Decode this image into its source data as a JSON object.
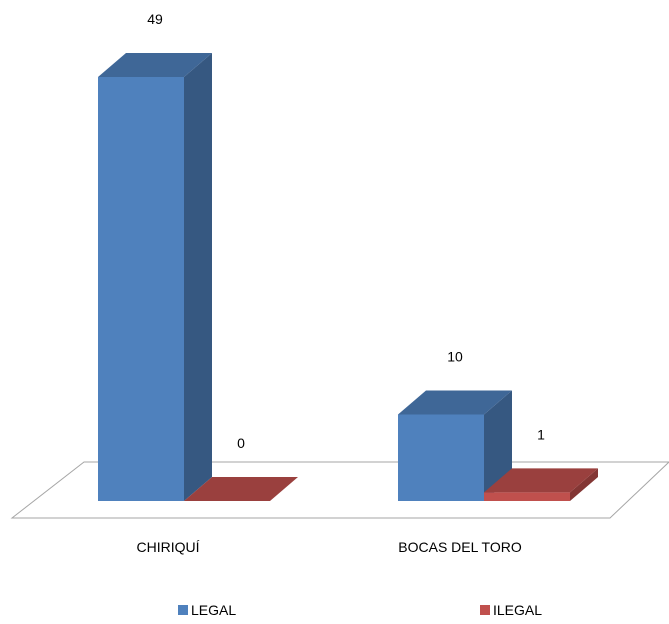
{
  "chart_data": {
    "type": "bar",
    "title": "",
    "xlabel": "",
    "ylabel": "",
    "categories": [
      "CHIRIQUÍ",
      "BOCAS DEL TORO"
    ],
    "series": [
      {
        "name": "LEGAL",
        "values": [
          49,
          10
        ],
        "color": "#4F81BD"
      },
      {
        "name": "ILEGAL",
        "values": [
          0,
          1
        ],
        "color": "#C0504D"
      }
    ],
    "ylim": [
      0,
      49
    ],
    "grid": false,
    "three_d": true,
    "legend_position": "bottom"
  }
}
